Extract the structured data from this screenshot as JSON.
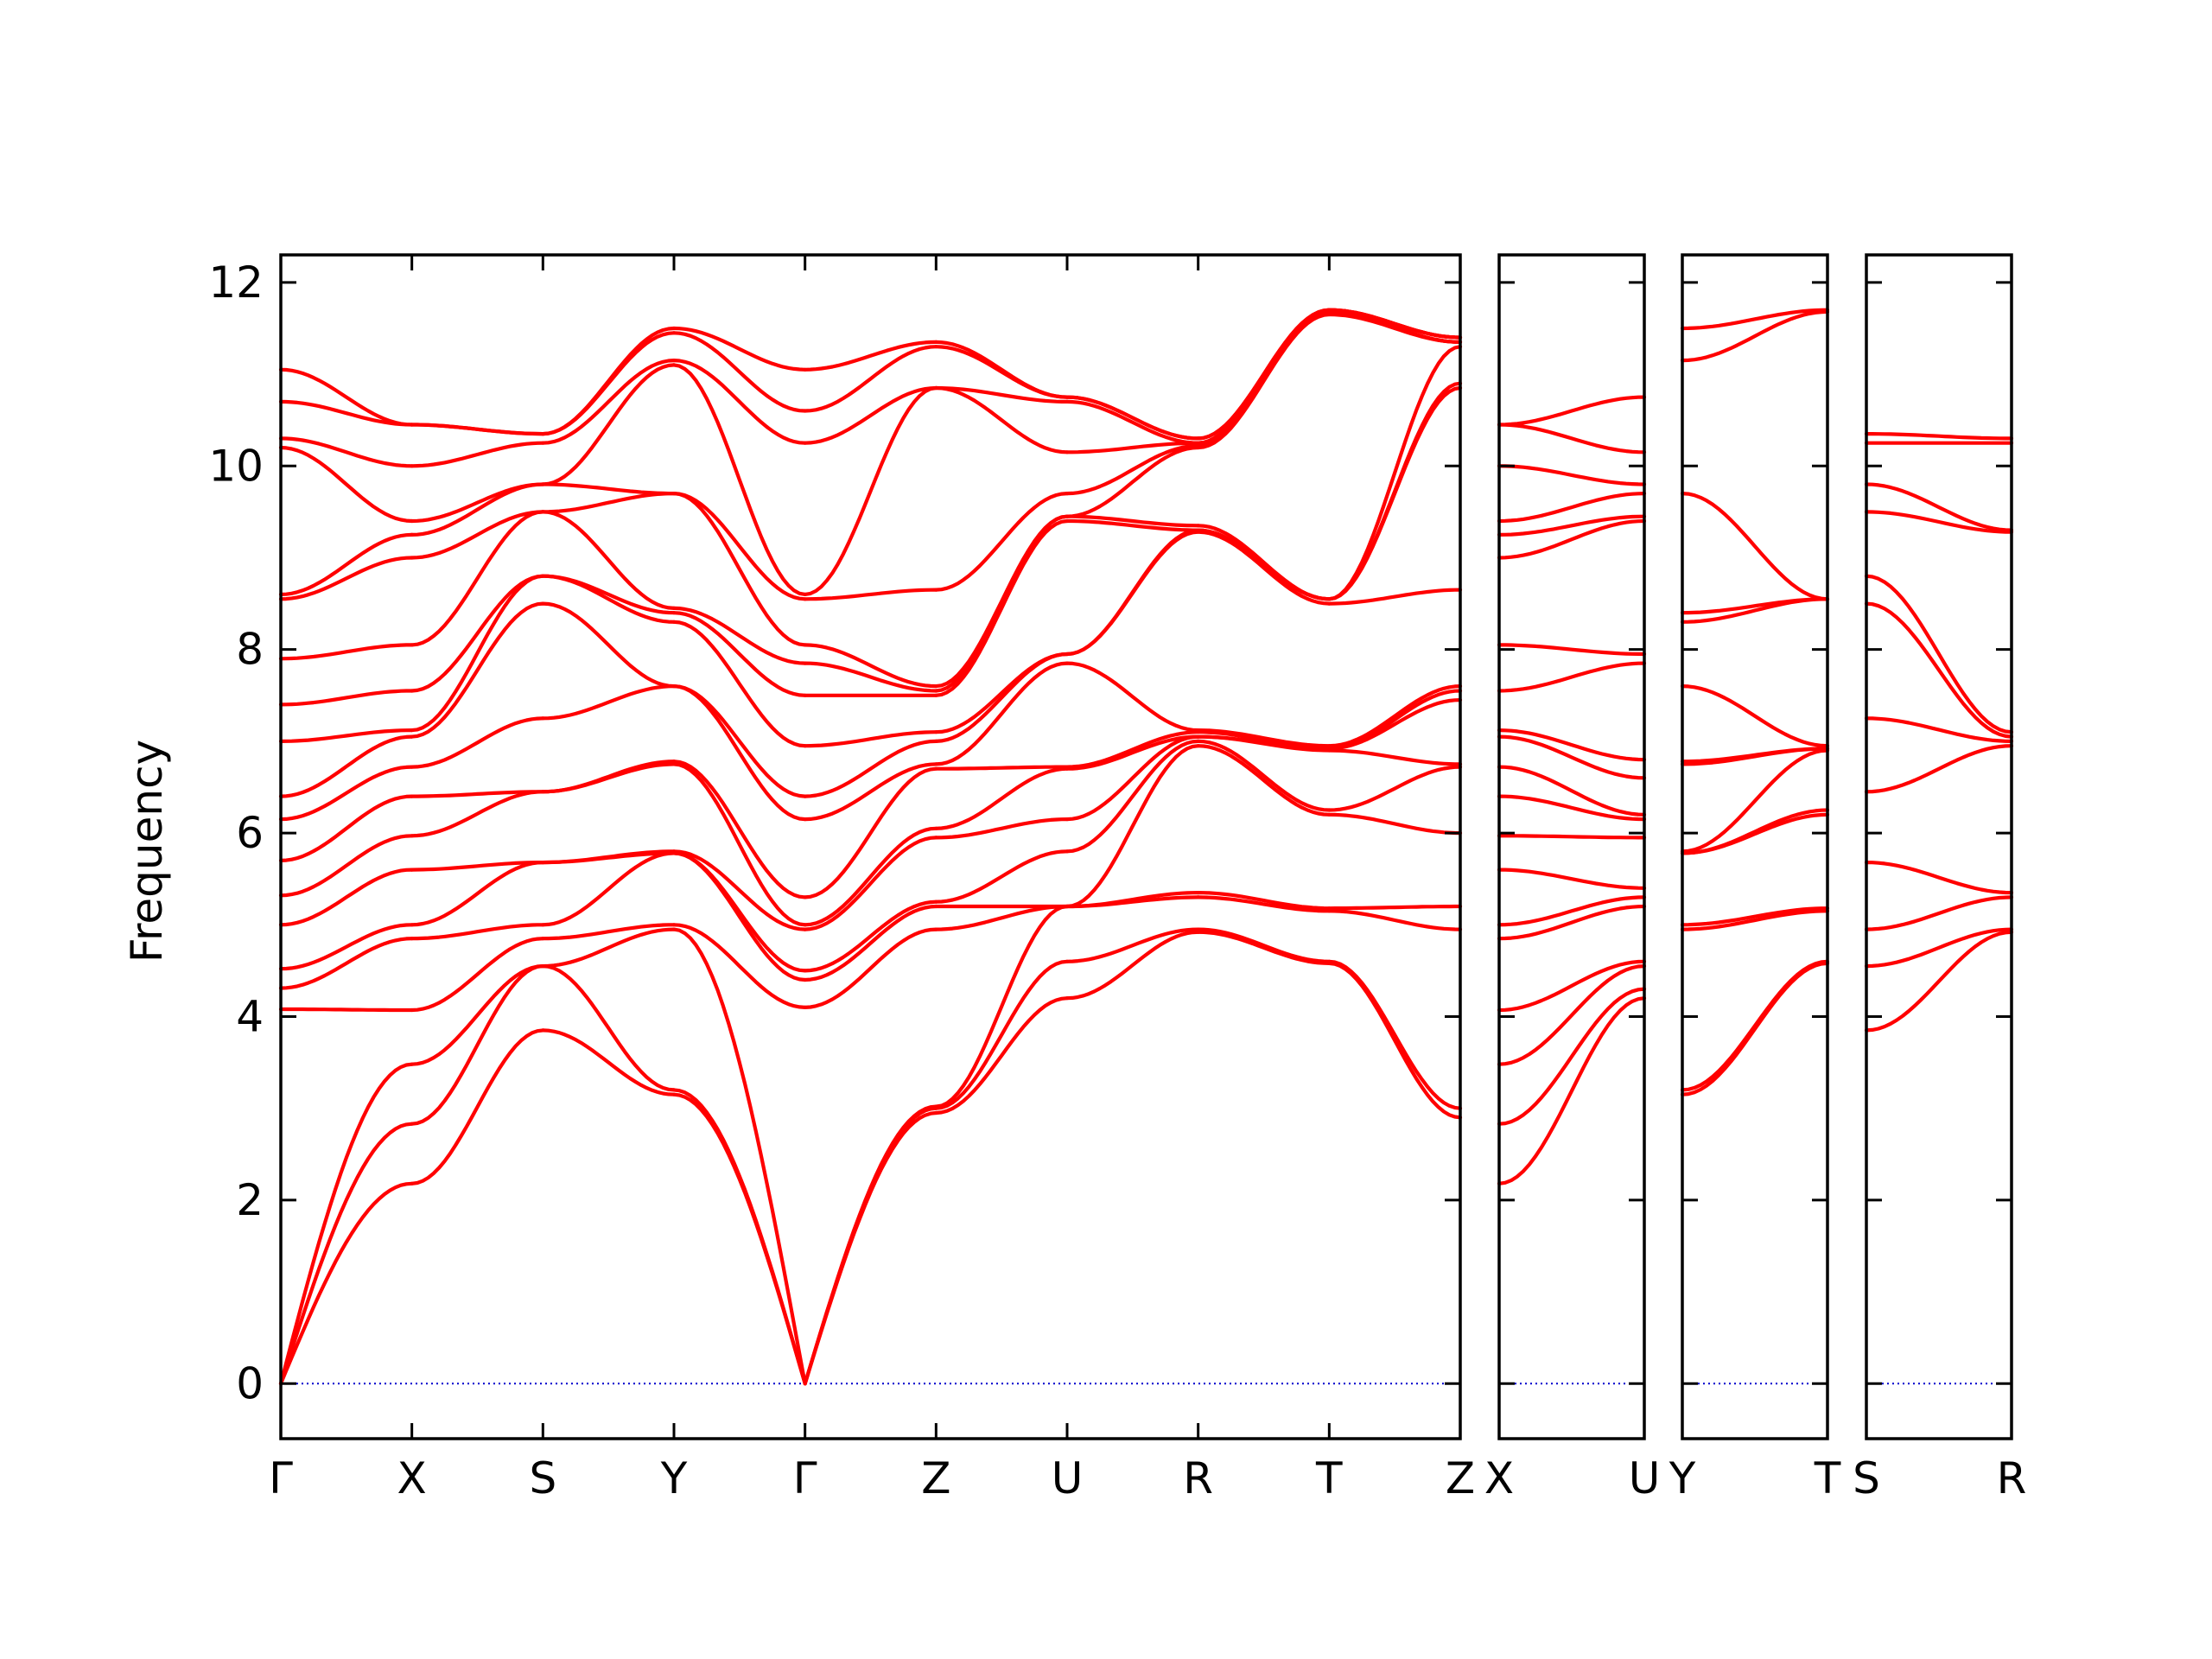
{
  "chart_data": {
    "type": "line",
    "title": "",
    "ylabel": "Frequency",
    "ylim": [
      -0.6,
      12.3
    ],
    "yticks": [
      0,
      2,
      4,
      6,
      8,
      10,
      12
    ],
    "colors": {
      "bands": "#ff0000",
      "zero": "#0000cc",
      "frame": "#000000"
    },
    "panels": [
      {
        "labels": [
          "Γ",
          "X",
          "S",
          "Y",
          "Γ",
          "Z",
          "U",
          "R",
          "T",
          "Z"
        ],
        "segments": [
          {
            "bands": [
              [
                0,
                2.18
              ],
              [
                0,
                2.83
              ],
              [
                0,
                3.48
              ],
              [
                4.08,
                4.07
              ],
              [
                4.31,
                4.85
              ],
              [
                4.52,
                5.0
              ],
              [
                5.0,
                5.6
              ],
              [
                5.32,
                5.97
              ],
              [
                5.7,
                6.4
              ],
              [
                6.15,
                6.72
              ],
              [
                6.4,
                7.05
              ],
              [
                7.0,
                7.12
              ],
              [
                7.4,
                7.55
              ],
              [
                7.9,
                8.05
              ],
              [
                8.55,
                9.0
              ],
              [
                8.6,
                9.25
              ],
              [
                10.2,
                9.4
              ],
              [
                10.3,
                10.0
              ],
              [
                10.7,
                10.45
              ],
              [
                11.05,
                10.45
              ]
            ]
          },
          {
            "bands": [
              [
                2.18,
                3.85
              ],
              [
                2.83,
                4.55
              ],
              [
                3.48,
                4.55
              ],
              [
                4.07,
                4.85
              ],
              [
                4.85,
                5.0
              ],
              [
                5.0,
                5.68
              ],
              [
                5.6,
                5.68
              ],
              [
                5.97,
                6.45
              ],
              [
                6.4,
                6.45
              ],
              [
                6.72,
                7.25
              ],
              [
                7.05,
                8.5
              ],
              [
                7.12,
                8.8
              ],
              [
                7.55,
                8.8
              ],
              [
                8.05,
                9.5
              ],
              [
                9.0,
                9.5
              ],
              [
                9.25,
                9.8
              ],
              [
                9.4,
                9.8
              ],
              [
                10.0,
                10.25
              ],
              [
                10.45,
                10.35
              ],
              [
                10.45,
                10.35
              ]
            ]
          },
          {
            "bands": [
              [
                3.85,
                3.15
              ],
              [
                4.55,
                3.2
              ],
              [
                4.55,
                4.95
              ],
              [
                4.85,
                5.0
              ],
              [
                5.0,
                5.78
              ],
              [
                5.68,
                5.78
              ],
              [
                5.68,
                5.8
              ],
              [
                6.45,
                6.75
              ],
              [
                6.45,
                6.78
              ],
              [
                7.25,
                7.6
              ],
              [
                8.5,
                7.6
              ],
              [
                8.8,
                8.3
              ],
              [
                8.8,
                8.4
              ],
              [
                9.5,
                8.45
              ],
              [
                9.5,
                9.7
              ],
              [
                9.8,
                9.7
              ],
              [
                9.8,
                11.1
              ],
              [
                10.25,
                11.15
              ],
              [
                10.35,
                11.45
              ],
              [
                10.35,
                11.5
              ]
            ]
          },
          {
            "bands": [
              [
                3.15,
                0
              ],
              [
                3.2,
                0
              ],
              [
                4.95,
                0
              ],
              [
                5.0,
                4.1
              ],
              [
                5.78,
                4.4
              ],
              [
                5.78,
                4.5
              ],
              [
                5.8,
                4.95
              ],
              [
                6.75,
                5.0
              ],
              [
                6.78,
                5.3
              ],
              [
                7.6,
                6.15
              ],
              [
                7.6,
                6.4
              ],
              [
                8.3,
                6.95
              ],
              [
                8.4,
                7.5
              ],
              [
                8.45,
                7.85
              ],
              [
                9.7,
                8.05
              ],
              [
                9.7,
                8.55
              ],
              [
                11.1,
                8.6
              ],
              [
                11.15,
                10.25
              ],
              [
                11.45,
                10.6
              ],
              [
                11.5,
                11.05
              ]
            ]
          },
          {
            "bands": [
              [
                0,
                2.95
              ],
              [
                0,
                3.0
              ],
              [
                0,
                3.02
              ],
              [
                4.1,
                4.95
              ],
              [
                4.4,
                5.2
              ],
              [
                4.5,
                5.25
              ],
              [
                4.95,
                5.95
              ],
              [
                5.0,
                6.05
              ],
              [
                5.3,
                6.7
              ],
              [
                6.15,
                6.75
              ],
              [
                6.4,
                7.0
              ],
              [
                6.95,
                7.1
              ],
              [
                7.5,
                7.5
              ],
              [
                7.85,
                7.55
              ],
              [
                8.05,
                7.6
              ],
              [
                8.55,
                8.65
              ],
              [
                8.6,
                10.85
              ],
              [
                10.25,
                10.85
              ],
              [
                10.6,
                11.3
              ],
              [
                11.05,
                11.35
              ]
            ]
          },
          {
            "bands": [
              [
                2.95,
                4.2
              ],
              [
                3.0,
                4.6
              ],
              [
                3.02,
                5.2
              ],
              [
                4.95,
                5.2
              ],
              [
                5.2,
                5.2
              ],
              [
                5.25,
                5.8
              ],
              [
                5.95,
                6.15
              ],
              [
                6.05,
                6.7
              ],
              [
                6.7,
                6.72
              ],
              [
                6.75,
                7.85
              ],
              [
                7.0,
                7.95
              ],
              [
                7.1,
                7.95
              ],
              [
                7.5,
                9.4
              ],
              [
                7.55,
                9.45
              ],
              [
                7.6,
                9.45
              ],
              [
                8.65,
                9.7
              ],
              [
                10.85,
                10.15
              ],
              [
                10.85,
                10.7
              ],
              [
                11.3,
                10.75
              ],
              [
                11.35,
                10.75
              ]
            ]
          },
          {
            "bands": [
              [
                4.2,
                4.92
              ],
              [
                4.6,
                4.95
              ],
              [
                5.2,
                5.3
              ],
              [
                5.2,
                5.35
              ],
              [
                5.2,
                6.95
              ],
              [
                5.8,
                7.0
              ],
              [
                6.15,
                7.05
              ],
              [
                6.7,
                7.05
              ],
              [
                6.72,
                7.1
              ],
              [
                7.85,
                7.12
              ],
              [
                7.95,
                9.28
              ],
              [
                7.95,
                9.3
              ],
              [
                9.4,
                9.3
              ],
              [
                9.45,
                9.35
              ],
              [
                9.45,
                10.2
              ],
              [
                9.7,
                10.22
              ],
              [
                10.15,
                10.25
              ],
              [
                10.7,
                10.25
              ],
              [
                10.75,
                10.3
              ],
              [
                10.75,
                10.3
              ]
            ]
          },
          {
            "bands": [
              [
                4.92,
                4.58
              ],
              [
                4.95,
                4.6
              ],
              [
                5.3,
                5.15
              ],
              [
                5.35,
                5.18
              ],
              [
                6.95,
                6.2
              ],
              [
                7.0,
                6.25
              ],
              [
                7.05,
                6.9
              ],
              [
                7.05,
                6.92
              ],
              [
                7.1,
                6.92
              ],
              [
                7.12,
                6.95
              ],
              [
                9.28,
                8.5
              ],
              [
                9.3,
                8.55
              ],
              [
                9.3,
                8.55
              ],
              [
                9.35,
                8.55
              ],
              [
                10.2,
                11.65
              ],
              [
                10.22,
                11.68
              ],
              [
                10.25,
                11.68
              ],
              [
                10.25,
                11.7
              ],
              [
                10.3,
                11.7
              ],
              [
                10.3,
                11.7
              ]
            ]
          },
          {
            "bands": [
              [
                4.58,
                2.9
              ],
              [
                4.6,
                3.0
              ],
              [
                5.15,
                4.95
              ],
              [
                5.18,
                5.2
              ],
              [
                6.2,
                6.0
              ],
              [
                6.25,
                6.72
              ],
              [
                6.9,
                6.75
              ],
              [
                6.92,
                7.45
              ],
              [
                6.92,
                7.55
              ],
              [
                6.95,
                7.6
              ],
              [
                8.5,
                8.65
              ],
              [
                8.55,
                10.85
              ],
              [
                8.55,
                10.9
              ],
              [
                8.55,
                11.3
              ],
              [
                11.65,
                11.35
              ],
              [
                11.68,
                11.35
              ],
              [
                11.68,
                11.35
              ],
              [
                11.7,
                11.4
              ],
              [
                11.7,
                11.4
              ],
              [
                11.7,
                11.4
              ]
            ]
          }
        ]
      },
      {
        "labels": [
          "X",
          "U"
        ],
        "segments": [
          {
            "bands": [
              [
                2.18,
                4.2
              ],
              [
                2.83,
                4.3
              ],
              [
                3.48,
                4.55
              ],
              [
                4.07,
                4.6
              ],
              [
                4.85,
                5.2
              ],
              [
                5.0,
                5.3
              ],
              [
                5.6,
                5.4
              ],
              [
                5.97,
                5.95
              ],
              [
                6.4,
                6.15
              ],
              [
                6.72,
                6.2
              ],
              [
                7.05,
                6.6
              ],
              [
                7.12,
                6.8
              ],
              [
                7.55,
                7.85
              ],
              [
                8.05,
                7.95
              ],
              [
                9.0,
                9.4
              ],
              [
                9.25,
                9.45
              ],
              [
                9.4,
                9.7
              ],
              [
                10.0,
                9.8
              ],
              [
                10.45,
                10.15
              ],
              [
                10.45,
                10.75
              ]
            ]
          }
        ]
      },
      {
        "labels": [
          "Y",
          "T"
        ],
        "segments": [
          {
            "bands": [
              [
                3.15,
                4.58
              ],
              [
                3.2,
                4.6
              ],
              [
                4.95,
                5.15
              ],
              [
                5.0,
                5.18
              ],
              [
                5.78,
                6.2
              ],
              [
                5.78,
                6.25
              ],
              [
                5.8,
                6.9
              ],
              [
                6.75,
                6.92
              ],
              [
                6.78,
                6.92
              ],
              [
                7.6,
                6.95
              ],
              [
                8.3,
                8.55
              ],
              [
                8.4,
                8.55
              ],
              [
                9.7,
                8.55
              ],
              [
                11.15,
                11.68
              ],
              [
                11.5,
                11.7
              ]
            ]
          }
        ]
      },
      {
        "labels": [
          "S",
          "R"
        ],
        "segments": [
          {
            "bands": [
              [
                3.85,
                4.92
              ],
              [
                4.55,
                4.95
              ],
              [
                4.95,
                5.3
              ],
              [
                5.68,
                5.35
              ],
              [
                6.45,
                6.95
              ],
              [
                7.25,
                7.0
              ],
              [
                8.5,
                7.05
              ],
              [
                8.8,
                7.1
              ],
              [
                9.5,
                9.28
              ],
              [
                9.8,
                9.3
              ],
              [
                10.25,
                10.25
              ],
              [
                10.35,
                10.3
              ]
            ]
          }
        ]
      }
    ]
  }
}
